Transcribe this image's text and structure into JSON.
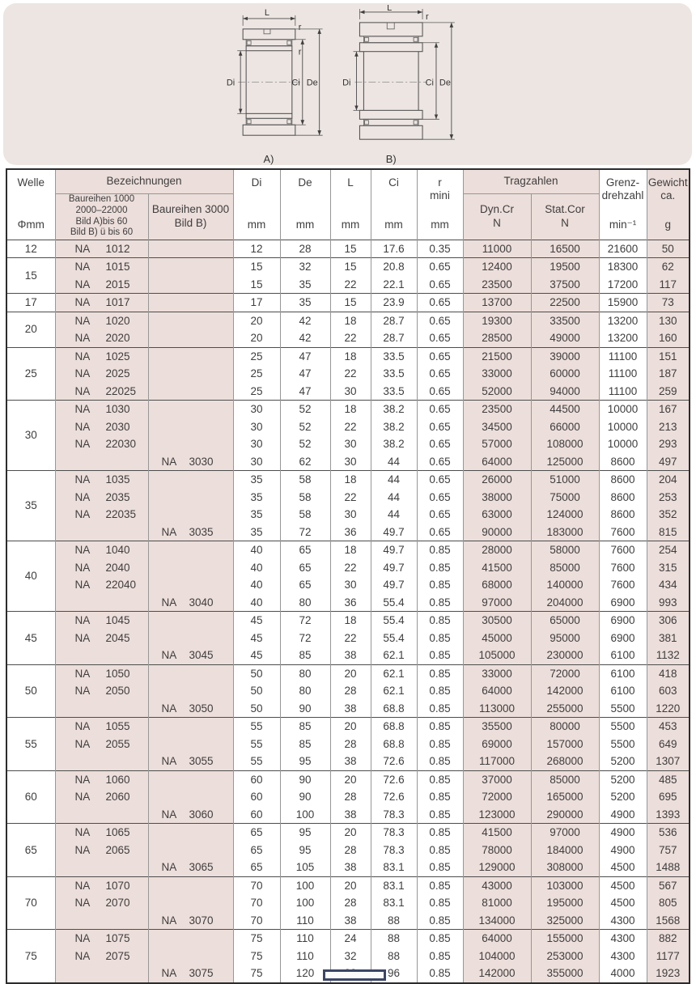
{
  "diagram": {
    "l": "L",
    "r": "r",
    "di": "Di",
    "ci": "Ci",
    "de": "De",
    "fig_a": "A)",
    "fig_b": "B)",
    "panel_color": "#ece5e2"
  },
  "table": {
    "header": {
      "welle": "Welle",
      "welle_unit": "Φmm",
      "bezeichnungen": "Bezeichnungen",
      "baureihen_1000": "Baureihen 1000\n2000–22000\nBild A)bis 60\nBild B) ü bis 60",
      "baureihen_3000": "Baureihen 3000\nBild B)",
      "di": "Di",
      "de": "De",
      "l": "L",
      "ci": "Ci",
      "r_mini": "r\nmini",
      "unit_mm": "mm",
      "tragzahlen": "Tragzahlen",
      "dyn": "Dyn.Cr\nN",
      "stat": "Stat.Cor\nN",
      "grenz": "Grenz-\ndrehzahl",
      "grenz_unit": "min⁻¹",
      "gewicht": "Gewicht\nca.",
      "gewicht_unit": "g"
    },
    "accent_pink": "#ecdeda",
    "groups": [
      {
        "welle": "12",
        "rows": [
          {
            "b1": "NA 1012",
            "b3": "",
            "di": "12",
            "de": "28",
            "l": "15",
            "ci": "17.6",
            "r": "0.35",
            "dyn": "11000",
            "stat": "16500",
            "grenz": "21600",
            "g": "50"
          }
        ]
      },
      {
        "welle": "15",
        "rows": [
          {
            "b1": "NA 1015",
            "b3": "",
            "di": "15",
            "de": "32",
            "l": "15",
            "ci": "20.8",
            "r": "0.65",
            "dyn": "12400",
            "stat": "19500",
            "grenz": "18300",
            "g": "62"
          },
          {
            "b1": "NA 2015",
            "b3": "",
            "di": "15",
            "de": "35",
            "l": "22",
            "ci": "22.1",
            "r": "0.65",
            "dyn": "23500",
            "stat": "37500",
            "grenz": "17200",
            "g": "117"
          }
        ]
      },
      {
        "welle": "17",
        "rows": [
          {
            "b1": "NA 1017",
            "b3": "",
            "di": "17",
            "de": "35",
            "l": "15",
            "ci": "23.9",
            "r": "0.65",
            "dyn": "13700",
            "stat": "22500",
            "grenz": "15900",
            "g": "73"
          }
        ]
      },
      {
        "welle": "20",
        "rows": [
          {
            "b1": "NA 1020",
            "b3": "",
            "di": "20",
            "de": "42",
            "l": "18",
            "ci": "28.7",
            "r": "0.65",
            "dyn": "19300",
            "stat": "33500",
            "grenz": "13200",
            "g": "130"
          },
          {
            "b1": "NA 2020",
            "b3": "",
            "di": "20",
            "de": "42",
            "l": "22",
            "ci": "28.7",
            "r": "0.65",
            "dyn": "28500",
            "stat": "49000",
            "grenz": "13200",
            "g": "160"
          }
        ]
      },
      {
        "welle": "25",
        "rows": [
          {
            "b1": "NA 1025",
            "b3": "",
            "di": "25",
            "de": "47",
            "l": "18",
            "ci": "33.5",
            "r": "0.65",
            "dyn": "21500",
            "stat": "39000",
            "grenz": "11100",
            "g": "151"
          },
          {
            "b1": "NA 2025",
            "b3": "",
            "di": "25",
            "de": "47",
            "l": "22",
            "ci": "33.5",
            "r": "0.65",
            "dyn": "33000",
            "stat": "60000",
            "grenz": "11100",
            "g": "187"
          },
          {
            "b1": "NA 22025",
            "b3": "",
            "di": "25",
            "de": "47",
            "l": "30",
            "ci": "33.5",
            "r": "0.65",
            "dyn": "52000",
            "stat": "94000",
            "grenz": "11100",
            "g": "259"
          }
        ]
      },
      {
        "welle": "30",
        "rows": [
          {
            "b1": "NA 1030",
            "b3": "",
            "di": "30",
            "de": "52",
            "l": "18",
            "ci": "38.2",
            "r": "0.65",
            "dyn": "23500",
            "stat": "44500",
            "grenz": "10000",
            "g": "167"
          },
          {
            "b1": "NA 2030",
            "b3": "",
            "di": "30",
            "de": "52",
            "l": "22",
            "ci": "38.2",
            "r": "0.65",
            "dyn": "34500",
            "stat": "66000",
            "grenz": "10000",
            "g": "213"
          },
          {
            "b1": "NA 22030",
            "b3": "",
            "di": "30",
            "de": "52",
            "l": "30",
            "ci": "38.2",
            "r": "0.65",
            "dyn": "57000",
            "stat": "108000",
            "grenz": "10000",
            "g": "293"
          },
          {
            "b1": "",
            "b3": "NA 3030",
            "di": "30",
            "de": "62",
            "l": "30",
            "ci": "44",
            "r": "0.65",
            "dyn": "64000",
            "stat": "125000",
            "grenz": "8600",
            "g": "497"
          }
        ]
      },
      {
        "welle": "35",
        "rows": [
          {
            "b1": "NA 1035",
            "b3": "",
            "di": "35",
            "de": "58",
            "l": "18",
            "ci": "44",
            "r": "0.65",
            "dyn": "26000",
            "stat": "51000",
            "grenz": "8600",
            "g": "204"
          },
          {
            "b1": "NA 2035",
            "b3": "",
            "di": "35",
            "de": "58",
            "l": "22",
            "ci": "44",
            "r": "0.65",
            "dyn": "38000",
            "stat": "75000",
            "grenz": "8600",
            "g": "253"
          },
          {
            "b1": "NA 22035",
            "b3": "",
            "di": "35",
            "de": "58",
            "l": "30",
            "ci": "44",
            "r": "0.65",
            "dyn": "63000",
            "stat": "124000",
            "grenz": "8600",
            "g": "352"
          },
          {
            "b1": "",
            "b3": "NA 3035",
            "di": "35",
            "de": "72",
            "l": "36",
            "ci": "49.7",
            "r": "0.65",
            "dyn": "90000",
            "stat": "183000",
            "grenz": "7600",
            "g": "815"
          }
        ]
      },
      {
        "welle": "40",
        "rows": [
          {
            "b1": "NA 1040",
            "b3": "",
            "di": "40",
            "de": "65",
            "l": "18",
            "ci": "49.7",
            "r": "0.85",
            "dyn": "28000",
            "stat": "58000",
            "grenz": "7600",
            "g": "254"
          },
          {
            "b1": "NA 2040",
            "b3": "",
            "di": "40",
            "de": "65",
            "l": "22",
            "ci": "49.7",
            "r": "0.85",
            "dyn": "41500",
            "stat": "85000",
            "grenz": "7600",
            "g": "315"
          },
          {
            "b1": "NA 22040",
            "b3": "",
            "di": "40",
            "de": "65",
            "l": "30",
            "ci": "49.7",
            "r": "0.85",
            "dyn": "68000",
            "stat": "140000",
            "grenz": "7600",
            "g": "434"
          },
          {
            "b1": "",
            "b3": "NA 3040",
            "di": "40",
            "de": "80",
            "l": "36",
            "ci": "55.4",
            "r": "0.85",
            "dyn": "97000",
            "stat": "204000",
            "grenz": "6900",
            "g": "993"
          }
        ]
      },
      {
        "welle": "45",
        "rows": [
          {
            "b1": "NA 1045",
            "b3": "",
            "di": "45",
            "de": "72",
            "l": "18",
            "ci": "55.4",
            "r": "0.85",
            "dyn": "30500",
            "stat": "65000",
            "grenz": "6900",
            "g": "306"
          },
          {
            "b1": "NA 2045",
            "b3": "",
            "di": "45",
            "de": "72",
            "l": "22",
            "ci": "55.4",
            "r": "0.85",
            "dyn": "45000",
            "stat": "95000",
            "grenz": "6900",
            "g": "381"
          },
          {
            "b1": "",
            "b3": "NA 3045",
            "di": "45",
            "de": "85",
            "l": "38",
            "ci": "62.1",
            "r": "0.85",
            "dyn": "105000",
            "stat": "230000",
            "grenz": "6100",
            "g": "1132"
          }
        ]
      },
      {
        "welle": "50",
        "rows": [
          {
            "b1": "NA 1050",
            "b3": "",
            "di": "50",
            "de": "80",
            "l": "20",
            "ci": "62.1",
            "r": "0.85",
            "dyn": "33000",
            "stat": "72000",
            "grenz": "6100",
            "g": "418"
          },
          {
            "b1": "NA 2050",
            "b3": "",
            "di": "50",
            "de": "80",
            "l": "28",
            "ci": "62.1",
            "r": "0.85",
            "dyn": "64000",
            "stat": "142000",
            "grenz": "6100",
            "g": "603"
          },
          {
            "b1": "",
            "b3": "NA 3050",
            "di": "50",
            "de": "90",
            "l": "38",
            "ci": "68.8",
            "r": "0.85",
            "dyn": "113000",
            "stat": "255000",
            "grenz": "5500",
            "g": "1220"
          }
        ]
      },
      {
        "welle": "55",
        "rows": [
          {
            "b1": "NA 1055",
            "b3": "",
            "di": "55",
            "de": "85",
            "l": "20",
            "ci": "68.8",
            "r": "0.85",
            "dyn": "35500",
            "stat": "80000",
            "grenz": "5500",
            "g": "453"
          },
          {
            "b1": "NA 2055",
            "b3": "",
            "di": "55",
            "de": "85",
            "l": "28",
            "ci": "68.8",
            "r": "0.85",
            "dyn": "69000",
            "stat": "157000",
            "grenz": "5500",
            "g": "649"
          },
          {
            "b1": "",
            "b3": "NA 3055",
            "di": "55",
            "de": "95",
            "l": "38",
            "ci": "72.6",
            "r": "0.85",
            "dyn": "117000",
            "stat": "268000",
            "grenz": "5200",
            "g": "1307"
          }
        ]
      },
      {
        "welle": "60",
        "rows": [
          {
            "b1": "NA 1060",
            "b3": "",
            "di": "60",
            "de": "90",
            "l": "20",
            "ci": "72.6",
            "r": "0.85",
            "dyn": "37000",
            "stat": "85000",
            "grenz": "5200",
            "g": "485"
          },
          {
            "b1": "NA 2060",
            "b3": "",
            "di": "60",
            "de": "90",
            "l": "28",
            "ci": "72.6",
            "r": "0.85",
            "dyn": "72000",
            "stat": "165000",
            "grenz": "5200",
            "g": "695"
          },
          {
            "b1": "",
            "b3": "NA 3060",
            "di": "60",
            "de": "100",
            "l": "38",
            "ci": "78.3",
            "r": "0.85",
            "dyn": "123000",
            "stat": "290000",
            "grenz": "4900",
            "g": "1393"
          }
        ]
      },
      {
        "welle": "65",
        "rows": [
          {
            "b1": "NA 1065",
            "b3": "",
            "di": "65",
            "de": "95",
            "l": "20",
            "ci": "78.3",
            "r": "0.85",
            "dyn": "41500",
            "stat": "97000",
            "grenz": "4900",
            "g": "536"
          },
          {
            "b1": "NA 2065",
            "b3": "",
            "di": "65",
            "de": "95",
            "l": "28",
            "ci": "78.3",
            "r": "0.85",
            "dyn": "78000",
            "stat": "184000",
            "grenz": "4900",
            "g": "757"
          },
          {
            "b1": "",
            "b3": "NA 3065",
            "di": "65",
            "de": "105",
            "l": "38",
            "ci": "83.1",
            "r": "0.85",
            "dyn": "129000",
            "stat": "308000",
            "grenz": "4500",
            "g": "1488"
          }
        ]
      },
      {
        "welle": "70",
        "rows": [
          {
            "b1": "NA 1070",
            "b3": "",
            "di": "70",
            "de": "100",
            "l": "20",
            "ci": "83.1",
            "r": "0.85",
            "dyn": "43000",
            "stat": "103000",
            "grenz": "4500",
            "g": "567"
          },
          {
            "b1": "NA 2070",
            "b3": "",
            "di": "70",
            "de": "100",
            "l": "28",
            "ci": "83.1",
            "r": "0.85",
            "dyn": "81000",
            "stat": "195000",
            "grenz": "4500",
            "g": "805"
          },
          {
            "b1": "",
            "b3": "NA 3070",
            "di": "70",
            "de": "110",
            "l": "38",
            "ci": "88",
            "r": "0.85",
            "dyn": "134000",
            "stat": "325000",
            "grenz": "4300",
            "g": "1568"
          }
        ]
      },
      {
        "welle": "75",
        "rows": [
          {
            "b1": "NA 1075",
            "b3": "",
            "di": "75",
            "de": "110",
            "l": "24",
            "ci": "88",
            "r": "0.85",
            "dyn": "64000",
            "stat": "155000",
            "grenz": "4300",
            "g": "882"
          },
          {
            "b1": "NA 2075",
            "b3": "",
            "di": "75",
            "de": "110",
            "l": "32",
            "ci": "88",
            "r": "0.85",
            "dyn": "104000",
            "stat": "253000",
            "grenz": "4300",
            "g": "1177"
          },
          {
            "b1": "",
            "b3": "NA 3075",
            "di": "75",
            "de": "120",
            "l": "38",
            "ci": "96",
            "r": "0.85",
            "dyn": "142000",
            "stat": "355000",
            "grenz": "4000",
            "g": "1923"
          }
        ]
      }
    ]
  }
}
